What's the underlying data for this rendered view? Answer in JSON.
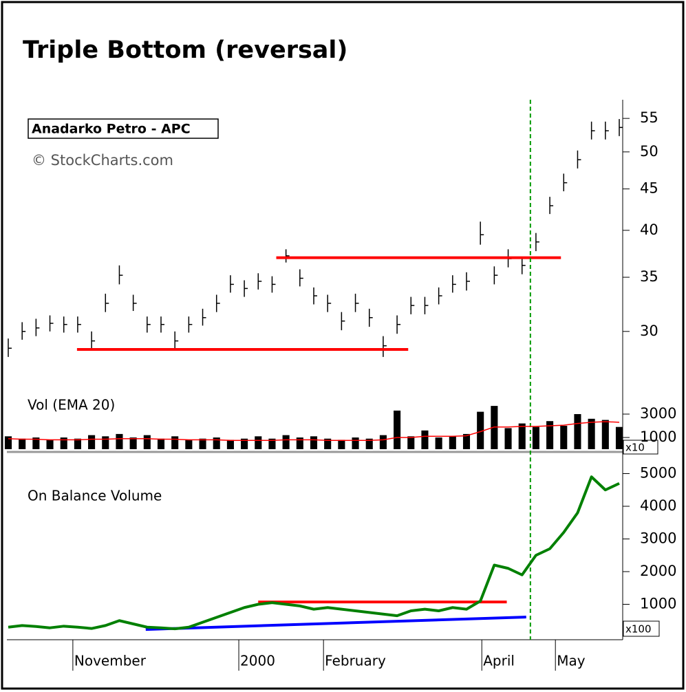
{
  "title": "Triple Bottom (reversal)",
  "chart_data": [
    {
      "type": "hlc",
      "name": "Anadarko Petro - APC",
      "source": "© StockCharts.com",
      "log": true,
      "ylim": [
        27.3,
        58
      ],
      "yticks": [
        30,
        35,
        40,
        45,
        50,
        55
      ],
      "xlim": [
        0,
        44
      ],
      "color": "#000000",
      "high": [
        29.4,
        30.8,
        31.1,
        31.4,
        31.3,
        31.3,
        30.0,
        33.4,
        36.2,
        33.3,
        31.3,
        31.3,
        30.0,
        31.3,
        32.0,
        33.3,
        35.2,
        34.7,
        35.4,
        35.1,
        37.9,
        35.8,
        34.0,
        33.3,
        31.7,
        33.4,
        32.0,
        29.6,
        31.4,
        33.1,
        33.1,
        34.0,
        35.2,
        35.5,
        41.0,
        36.1,
        37.9,
        37.1,
        39.7,
        44.0,
        47.0,
        50.2,
        54.5,
        54.5,
        54.9
      ],
      "low": [
        27.9,
        29.3,
        29.6,
        30.0,
        29.9,
        29.9,
        28.4,
        31.7,
        34.3,
        31.8,
        29.9,
        29.9,
        28.5,
        29.9,
        30.5,
        31.7,
        33.5,
        33.1,
        33.8,
        33.5,
        36.5,
        34.1,
        32.4,
        31.7,
        30.1,
        31.7,
        30.4,
        27.9,
        29.8,
        31.5,
        31.5,
        32.4,
        33.5,
        33.7,
        38.4,
        34.3,
        36.0,
        35.3,
        37.7,
        41.9,
        44.7,
        47.7,
        51.8,
        51.8,
        52.3
      ],
      "close": [
        28.6,
        30.0,
        30.3,
        30.7,
        30.6,
        30.6,
        29.2,
        32.5,
        35.2,
        32.5,
        30.6,
        30.6,
        29.2,
        30.6,
        31.2,
        32.5,
        34.3,
        33.9,
        34.6,
        34.3,
        37.2,
        34.9,
        33.2,
        32.5,
        30.9,
        32.5,
        31.2,
        28.8,
        30.6,
        32.3,
        32.3,
        33.2,
        34.3,
        34.6,
        39.5,
        35.2,
        36.9,
        36.2,
        38.7,
        42.9,
        45.8,
        48.9,
        53.1,
        53.1,
        53.6
      ],
      "lines": [
        {
          "x": [
            4.95,
            28.8
          ],
          "y": [
            28.5,
            28.5
          ],
          "color": "#ff0000"
        },
        {
          "x": [
            19.3,
            39.8
          ],
          "y": [
            37.0,
            37.0
          ],
          "color": "#ff0000"
        }
      ],
      "vline": 37.6,
      "vline_color": "#009900"
    },
    {
      "type": "bar",
      "title": "Vol (EMA 20)",
      "multiplier": "x10",
      "ylim": [
        0,
        6000
      ],
      "yticks": [
        1000,
        3000
      ],
      "xlim": [
        0,
        44
      ],
      "series": [
        {
          "color": "#000000",
          "values": [
            1100,
            900,
            1000,
            800,
            1000,
            900,
            1200,
            1100,
            1300,
            1000,
            1200,
            900,
            1100,
            800,
            900,
            1000,
            800,
            900,
            1100,
            900,
            1200,
            1000,
            1100,
            900,
            800,
            1000,
            900,
            1200,
            3300,
            1100,
            1600,
            1000,
            1100,
            1300,
            3200,
            3700,
            1800,
            2200,
            1900,
            2400,
            2000,
            3000,
            2600,
            2500,
            1900
          ]
        },
        {
          "color": "#ff0000",
          "line": true,
          "values": [
            900,
            850,
            850,
            800,
            800,
            800,
            850,
            850,
            900,
            900,
            900,
            850,
            850,
            800,
            800,
            800,
            750,
            750,
            750,
            750,
            800,
            800,
            800,
            750,
            750,
            750,
            750,
            800,
            1000,
            1000,
            1100,
            1100,
            1100,
            1150,
            1500,
            1900,
            1900,
            1950,
            1950,
            2000,
            2050,
            2200,
            2300,
            2350,
            2300
          ]
        }
      ]
    },
    {
      "type": "line",
      "title": "On Balance Volume",
      "multiplier": "x100",
      "ylim": [
        0,
        5600
      ],
      "yticks": [
        1000,
        2000,
        3000,
        4000,
        5000
      ],
      "xlim": [
        0,
        44
      ],
      "color": "#008000",
      "values": [
        300,
        350,
        320,
        280,
        330,
        300,
        260,
        350,
        500,
        400,
        300,
        280,
        250,
        300,
        450,
        600,
        750,
        900,
        1000,
        1050,
        1000,
        950,
        850,
        900,
        850,
        800,
        750,
        700,
        650,
        800,
        850,
        800,
        900,
        850,
        1100,
        2200,
        2100,
        1900,
        2500,
        2700,
        3200,
        3800,
        4900,
        4500,
        4700
      ],
      "lines": [
        {
          "x": [
            18,
            35.9
          ],
          "y": [
            1070,
            1070
          ],
          "color": "#ff0000"
        },
        {
          "x": [
            9.9,
            37.3
          ],
          "y": [
            230,
            610
          ],
          "color": "#0000ff"
        }
      ],
      "xticks": [
        {
          "value": 4.85,
          "label": "November"
        },
        {
          "value": 16.8,
          "label": "2000"
        },
        {
          "value": 22.9,
          "label": "February"
        },
        {
          "value": 34.3,
          "label": "April"
        },
        {
          "value": 39.6,
          "label": "May"
        }
      ]
    }
  ]
}
